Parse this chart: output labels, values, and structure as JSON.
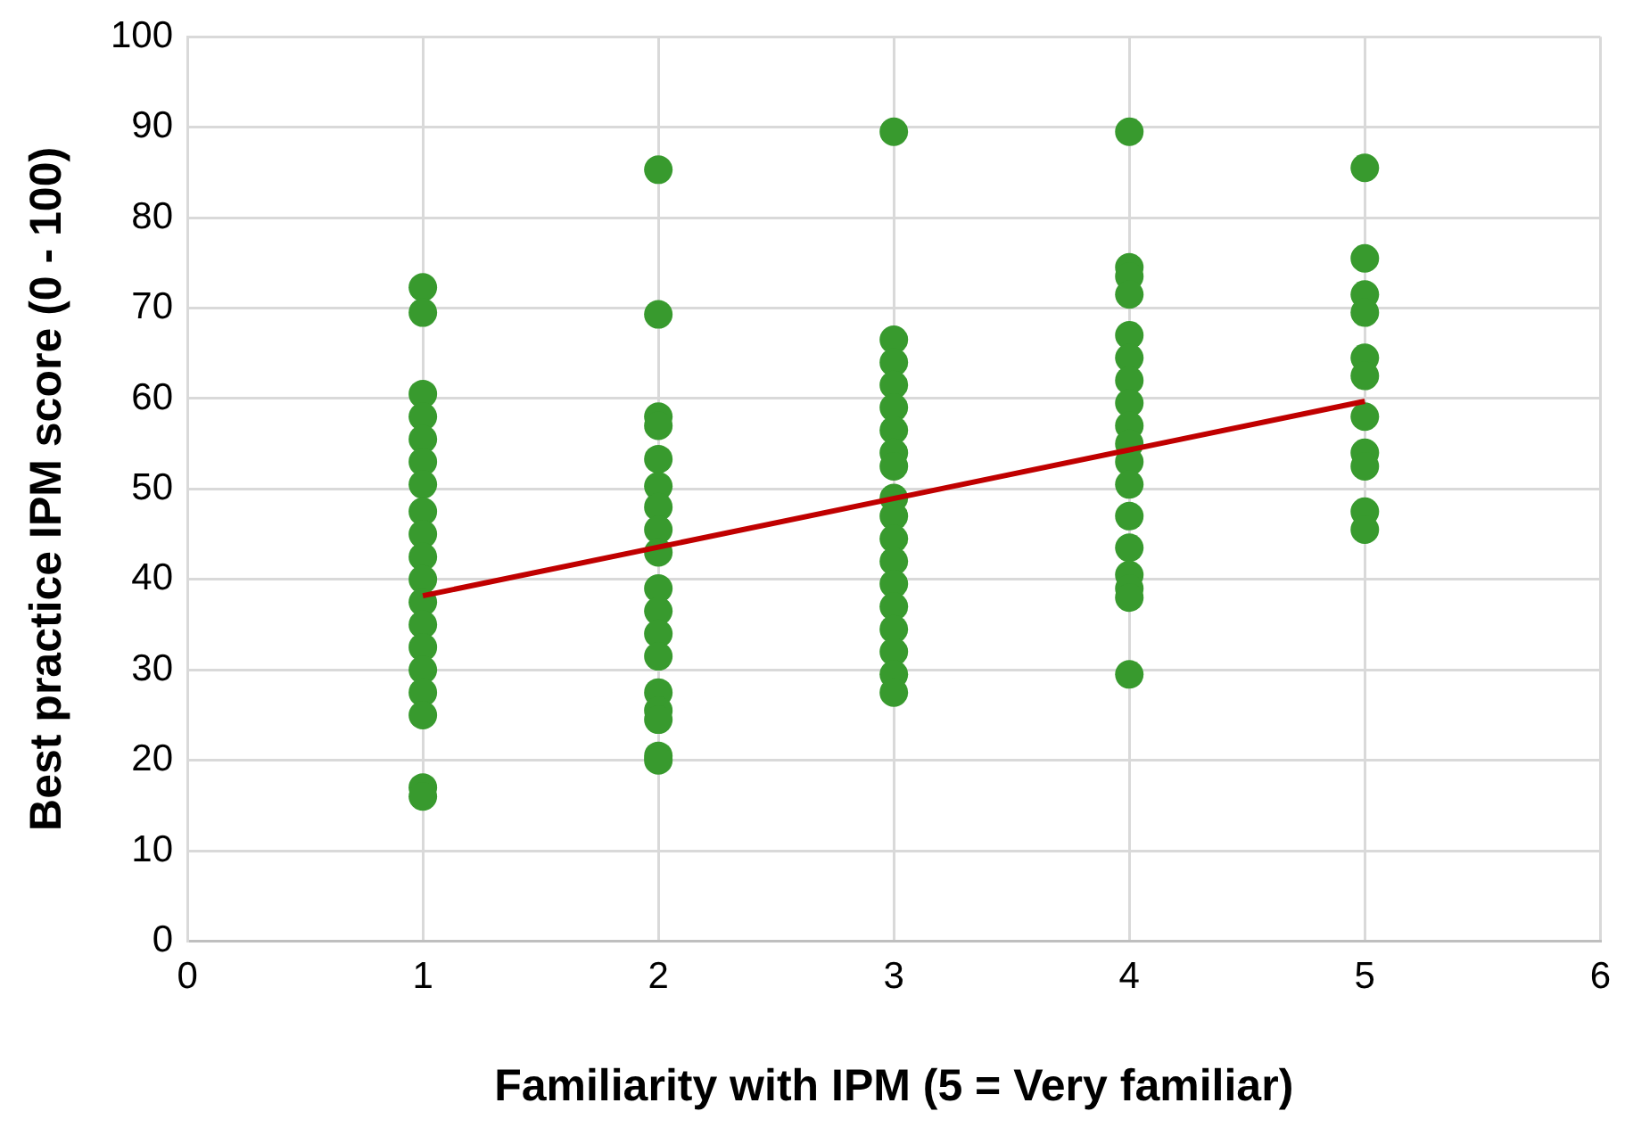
{
  "chart_data": {
    "type": "scatter",
    "xlabel": "Familiarity with IPM (5 = Very familiar)",
    "ylabel": "Best practice IPM score (0 - 100)",
    "xlim": [
      0,
      6
    ],
    "xticks": [
      0,
      1,
      2,
      3,
      4,
      5,
      6
    ],
    "ylim": [
      0,
      100
    ],
    "yticks": [
      0,
      10,
      20,
      30,
      40,
      50,
      60,
      70,
      80,
      90,
      100
    ],
    "grid": true,
    "legend": false,
    "marker": "circle",
    "series": [
      {
        "color": "#389a2e",
        "x": [
          1,
          1,
          1,
          1,
          1,
          1,
          1,
          1,
          1,
          1,
          1,
          1,
          1,
          1,
          1,
          1,
          1,
          1,
          1,
          2,
          2,
          2,
          2,
          2,
          2,
          2,
          2,
          2,
          2,
          2,
          2,
          2,
          2,
          2,
          2,
          2,
          2,
          3,
          3,
          3,
          3,
          3,
          3,
          3,
          3,
          3,
          3,
          3,
          3,
          3,
          3,
          3,
          3,
          3,
          3,
          4,
          4,
          4,
          4,
          4,
          4,
          4,
          4,
          4,
          4,
          4,
          4,
          4,
          4,
          4,
          4,
          4,
          4,
          5,
          5,
          5,
          5,
          5,
          5,
          5,
          5,
          5,
          5,
          5
        ],
        "values": [
          72.3,
          69.5,
          60.5,
          58,
          55.5,
          53,
          50.5,
          47.5,
          45,
          42.5,
          40,
          37.5,
          35,
          32.5,
          30,
          27.5,
          25,
          17,
          16,
          85.3,
          69.3,
          58,
          57,
          53.3,
          50.3,
          48,
          45.5,
          43,
          39,
          36.5,
          34,
          31.5,
          27.5,
          25.5,
          24.5,
          20.5,
          20,
          89.5,
          66.5,
          64,
          61.5,
          59,
          56.5,
          54,
          52.5,
          49,
          47,
          44.5,
          42,
          39.5,
          37,
          34.5,
          32,
          29.5,
          27.5,
          89.5,
          74.5,
          73.5,
          71.5,
          67,
          64.5,
          62,
          59.5,
          57,
          55,
          53,
          50.5,
          47,
          43.5,
          40.5,
          39,
          38,
          29.5,
          85.5,
          75.5,
          71.5,
          69.5,
          64.5,
          62.5,
          58,
          54,
          52.5,
          47.5,
          45.5
        ]
      },
      {
        "type": "line",
        "color": "#c00000",
        "marker": "none",
        "x": [
          1,
          5
        ],
        "values": [
          38.2,
          59.7
        ]
      }
    ]
  }
}
